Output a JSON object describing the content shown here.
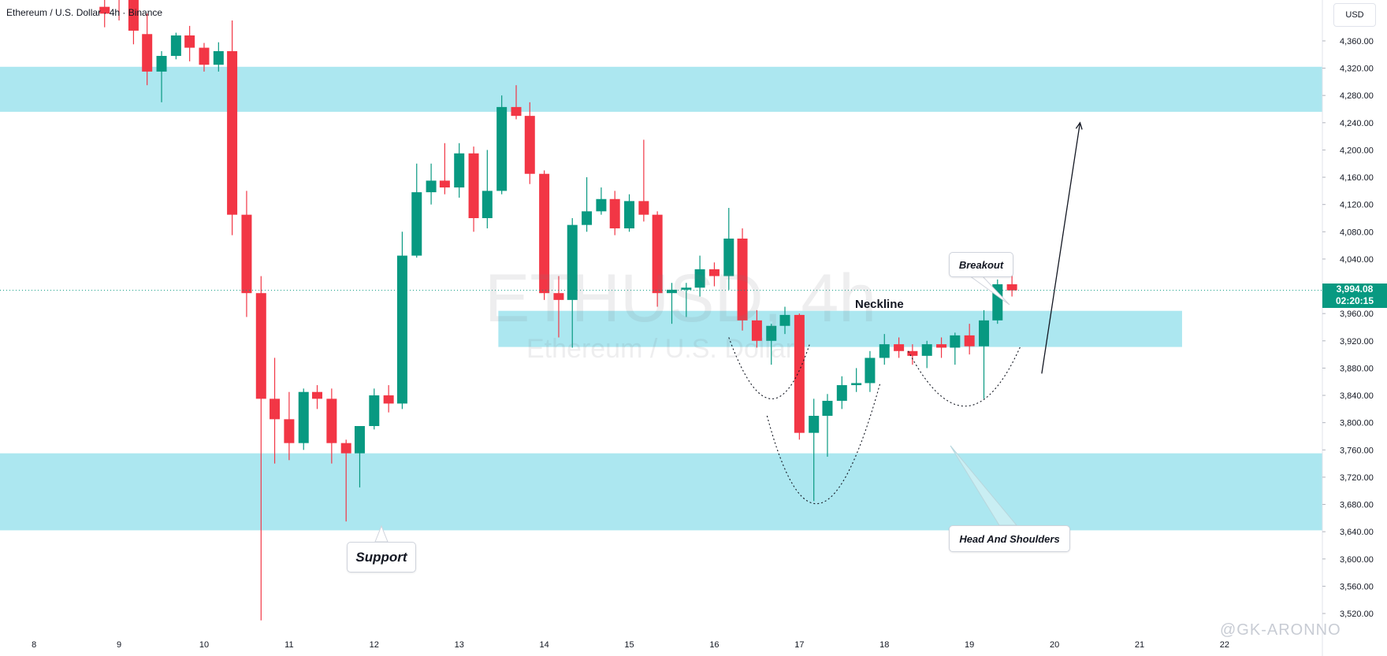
{
  "header": {
    "symbol_title": "Ethereum / U.S. Dollar · 4h · Binance",
    "currency": "USD"
  },
  "watermark": {
    "main": "ETHUSD, 4h",
    "sub": "Ethereum / U.S. Dollar",
    "author": "@GK-ARONNO"
  },
  "last_price": {
    "value": "3,994.08",
    "countdown": "02:20:15",
    "price": 3994.08,
    "color": "#089981"
  },
  "annotations": {
    "neckline": "Neckline",
    "breakout": "Breakout",
    "support": "Support",
    "head_and_shoulders": "Head And Shoulders"
  },
  "chart_data": {
    "type": "candlestick",
    "title": "Ethereum / U.S. Dollar · 4h · Binance",
    "yaxis_side": "right",
    "ylim": [
      3490,
      4420
    ],
    "y_ticks": [
      3520,
      3560,
      3600,
      3640,
      3680,
      3720,
      3760,
      3800,
      3840,
      3880,
      3920,
      3960,
      4000,
      4040,
      4080,
      4120,
      4160,
      4200,
      4240,
      4280,
      4320,
      4360
    ],
    "y_tick_labels": [
      "3,520.00",
      "3,560.00",
      "3,600.00",
      "3,640.00",
      "3,680.00",
      "3,720.00",
      "3,760.00",
      "3,800.00",
      "3,840.00",
      "3,880.00",
      "3,920.00",
      "3,960.00",
      "4,000.00",
      "4,040.00",
      "4,080.00",
      "4,120.00",
      "4,160.00",
      "4,200.00",
      "4,240.00",
      "4,280.00",
      "4,320.00",
      "4,360.00"
    ],
    "x_ticks": [
      8,
      9,
      10,
      11,
      12,
      13,
      14,
      15,
      16,
      17,
      18,
      19,
      20,
      21,
      22
    ],
    "x_tick_labels": [
      "8",
      "9",
      "10",
      "11",
      "12",
      "13",
      "14",
      "15",
      "16",
      "17",
      "18",
      "19",
      "20",
      "21",
      "22"
    ],
    "x_range": [
      7.6,
      23.15
    ],
    "colors": {
      "up": "#089981",
      "down": "#f23645",
      "zone": "#a8e6ef"
    },
    "candles": [
      {
        "t": 8.83,
        "o": 4410,
        "h": 4440,
        "l": 4380,
        "c": 4400
      },
      {
        "t": 9.0,
        "o": 4440,
        "h": 4480,
        "l": 4390,
        "c": 4430
      },
      {
        "t": 9.17,
        "o": 4420,
        "h": 4440,
        "l": 4355,
        "c": 4375
      },
      {
        "t": 9.33,
        "o": 4370,
        "h": 4400,
        "l": 4295,
        "c": 4315
      },
      {
        "t": 9.5,
        "o": 4315,
        "h": 4345,
        "l": 4270,
        "c": 4338
      },
      {
        "t": 9.67,
        "o": 4338,
        "h": 4372,
        "l": 4333,
        "c": 4368
      },
      {
        "t": 9.83,
        "o": 4368,
        "h": 4382,
        "l": 4330,
        "c": 4350
      },
      {
        "t": 10.0,
        "o": 4350,
        "h": 4357,
        "l": 4315,
        "c": 4325
      },
      {
        "t": 10.17,
        "o": 4325,
        "h": 4358,
        "l": 4315,
        "c": 4345
      },
      {
        "t": 10.33,
        "o": 4345,
        "h": 4390,
        "l": 4075,
        "c": 4105
      },
      {
        "t": 10.5,
        "o": 4105,
        "h": 4140,
        "l": 3955,
        "c": 3990
      },
      {
        "t": 10.67,
        "o": 3990,
        "h": 4015,
        "l": 3510,
        "c": 3835
      },
      {
        "t": 10.83,
        "o": 3835,
        "h": 3895,
        "l": 3740,
        "c": 3805
      },
      {
        "t": 11.0,
        "o": 3805,
        "h": 3845,
        "l": 3745,
        "c": 3770
      },
      {
        "t": 11.17,
        "o": 3770,
        "h": 3850,
        "l": 3760,
        "c": 3845
      },
      {
        "t": 11.33,
        "o": 3845,
        "h": 3855,
        "l": 3820,
        "c": 3835
      },
      {
        "t": 11.5,
        "o": 3835,
        "h": 3850,
        "l": 3740,
        "c": 3770
      },
      {
        "t": 11.67,
        "o": 3770,
        "h": 3775,
        "l": 3655,
        "c": 3755
      },
      {
        "t": 11.83,
        "o": 3755,
        "h": 3795,
        "l": 3705,
        "c": 3795
      },
      {
        "t": 12.0,
        "o": 3795,
        "h": 3850,
        "l": 3790,
        "c": 3840
      },
      {
        "t": 12.17,
        "o": 3840,
        "h": 3855,
        "l": 3815,
        "c": 3828
      },
      {
        "t": 12.33,
        "o": 3828,
        "h": 4080,
        "l": 3820,
        "c": 4045
      },
      {
        "t": 12.5,
        "o": 4045,
        "h": 4180,
        "l": 4042,
        "c": 4138
      },
      {
        "t": 12.67,
        "o": 4138,
        "h": 4180,
        "l": 4120,
        "c": 4155
      },
      {
        "t": 12.83,
        "o": 4155,
        "h": 4210,
        "l": 4135,
        "c": 4145
      },
      {
        "t": 13.0,
        "o": 4145,
        "h": 4210,
        "l": 4130,
        "c": 4195
      },
      {
        "t": 13.17,
        "o": 4195,
        "h": 4205,
        "l": 4080,
        "c": 4100
      },
      {
        "t": 13.33,
        "o": 4100,
        "h": 4200,
        "l": 4085,
        "c": 4140
      },
      {
        "t": 13.5,
        "o": 4140,
        "h": 4280,
        "l": 4135,
        "c": 4263
      },
      {
        "t": 13.67,
        "o": 4263,
        "h": 4295,
        "l": 4245,
        "c": 4250
      },
      {
        "t": 13.83,
        "o": 4250,
        "h": 4270,
        "l": 4150,
        "c": 4165
      },
      {
        "t": 14.0,
        "o": 4165,
        "h": 4170,
        "l": 3980,
        "c": 3990
      },
      {
        "t": 14.17,
        "o": 3990,
        "h": 4015,
        "l": 3925,
        "c": 3980
      },
      {
        "t": 14.33,
        "o": 3980,
        "h": 4100,
        "l": 3910,
        "c": 4090
      },
      {
        "t": 14.5,
        "o": 4090,
        "h": 4160,
        "l": 4080,
        "c": 4110
      },
      {
        "t": 14.67,
        "o": 4110,
        "h": 4145,
        "l": 4105,
        "c": 4128
      },
      {
        "t": 14.83,
        "o": 4128,
        "h": 4140,
        "l": 4075,
        "c": 4085
      },
      {
        "t": 15.0,
        "o": 4085,
        "h": 4135,
        "l": 4080,
        "c": 4125
      },
      {
        "t": 15.17,
        "o": 4125,
        "h": 4215,
        "l": 4095,
        "c": 4105
      },
      {
        "t": 15.33,
        "o": 4105,
        "h": 4110,
        "l": 3970,
        "c": 3990
      },
      {
        "t": 15.5,
        "o": 3990,
        "h": 4005,
        "l": 3945,
        "c": 3995
      },
      {
        "t": 15.67,
        "o": 3995,
        "h": 4005,
        "l": 3955,
        "c": 3998
      },
      {
        "t": 15.83,
        "o": 3998,
        "h": 4045,
        "l": 3985,
        "c": 4025
      },
      {
        "t": 16.0,
        "o": 4025,
        "h": 4035,
        "l": 4000,
        "c": 4015
      },
      {
        "t": 16.17,
        "o": 4015,
        "h": 4115,
        "l": 3995,
        "c": 4070
      },
      {
        "t": 16.33,
        "o": 4070,
        "h": 4085,
        "l": 3935,
        "c": 3950
      },
      {
        "t": 16.5,
        "o": 3950,
        "h": 3965,
        "l": 3910,
        "c": 3920
      },
      {
        "t": 16.67,
        "o": 3920,
        "h": 3945,
        "l": 3885,
        "c": 3942
      },
      {
        "t": 16.83,
        "o": 3942,
        "h": 3970,
        "l": 3930,
        "c": 3958
      },
      {
        "t": 17.0,
        "o": 3958,
        "h": 3960,
        "l": 3775,
        "c": 3785
      },
      {
        "t": 17.17,
        "o": 3785,
        "h": 3835,
        "l": 3685,
        "c": 3810
      },
      {
        "t": 17.33,
        "o": 3810,
        "h": 3842,
        "l": 3750,
        "c": 3832
      },
      {
        "t": 17.5,
        "o": 3832,
        "h": 3868,
        "l": 3820,
        "c": 3855
      },
      {
        "t": 17.67,
        "o": 3855,
        "h": 3880,
        "l": 3845,
        "c": 3858
      },
      {
        "t": 17.83,
        "o": 3858,
        "h": 3905,
        "l": 3845,
        "c": 3895
      },
      {
        "t": 18.0,
        "o": 3895,
        "h": 3930,
        "l": 3885,
        "c": 3915
      },
      {
        "t": 18.17,
        "o": 3915,
        "h": 3925,
        "l": 3895,
        "c": 3905
      },
      {
        "t": 18.33,
        "o": 3905,
        "h": 3915,
        "l": 3885,
        "c": 3898
      },
      {
        "t": 18.5,
        "o": 3898,
        "h": 3920,
        "l": 3880,
        "c": 3915
      },
      {
        "t": 18.67,
        "o": 3915,
        "h": 3925,
        "l": 3895,
        "c": 3910
      },
      {
        "t": 18.83,
        "o": 3910,
        "h": 3932,
        "l": 3885,
        "c": 3928
      },
      {
        "t": 19.0,
        "o": 3928,
        "h": 3945,
        "l": 3900,
        "c": 3912
      },
      {
        "t": 19.17,
        "o": 3912,
        "h": 3965,
        "l": 3835,
        "c": 3950
      },
      {
        "t": 19.33,
        "o": 3950,
        "h": 4010,
        "l": 3945,
        "c": 4003
      },
      {
        "t": 19.5,
        "o": 4003,
        "h": 4032,
        "l": 3985,
        "c": 3994
      }
    ],
    "zones": [
      {
        "y0": 4256,
        "y1": 4322,
        "x0": "left-edge",
        "x1": "axis"
      },
      {
        "y0": 3642,
        "y1": 3755,
        "x0": "left-edge",
        "x1": "axis"
      },
      {
        "y0": 3911,
        "y1": 3964,
        "x0": 13.46,
        "x1": 21.5
      }
    ],
    "projection_arrow": {
      "from": {
        "t": 19.85,
        "p": 3872
      },
      "to": {
        "t": 20.3,
        "p": 4240
      }
    }
  }
}
